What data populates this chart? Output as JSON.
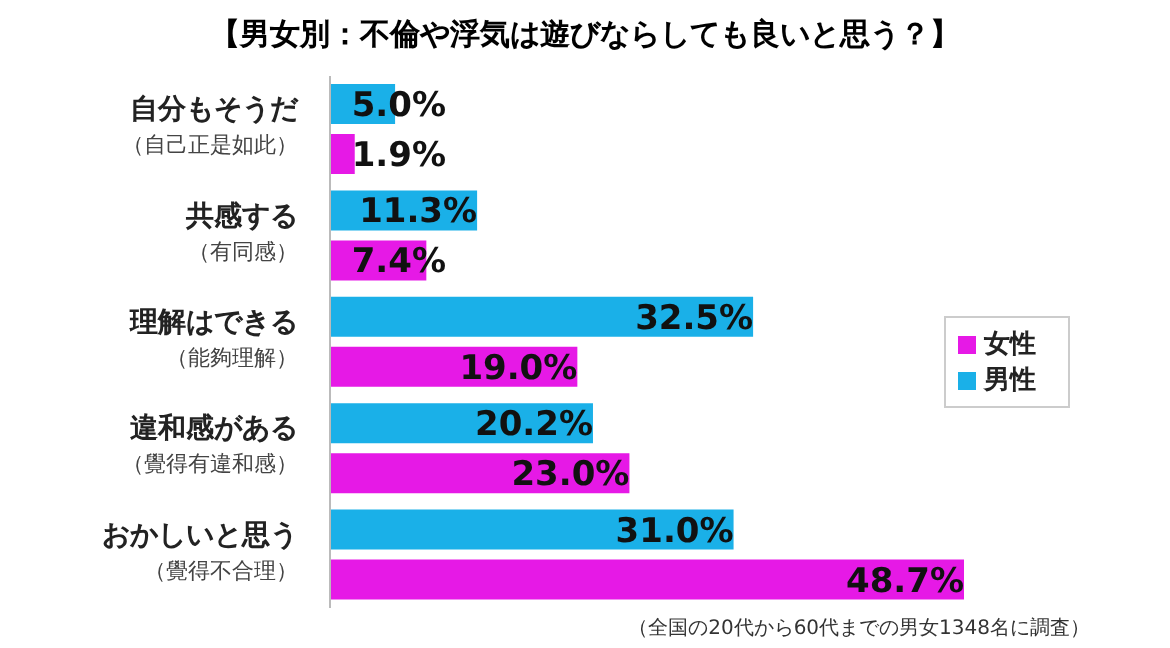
{
  "chart_data": {
    "type": "bar",
    "orientation": "horizontal",
    "title": "【男女別：不倫や浮気は遊びならしても良いと思う？】",
    "categories": [
      "自分もそうだ（自己正是如此）",
      "共感する（有同感）",
      "理解はできる（能夠理解）",
      "違和感がある（覺得有違和感）",
      "おかしいと思う（覺得不合理）"
    ],
    "series": [
      {
        "name": "男性",
        "color": "#1ab0e8",
        "values": [
          5.0,
          11.3,
          32.5,
          20.2,
          31.0
        ],
        "value_labels": [
          "5.0%",
          "11.3%",
          "32.5%",
          "20.2%",
          "31.0%"
        ]
      },
      {
        "name": "女性",
        "color": "#e619e6",
        "values": [
          1.9,
          7.4,
          19.0,
          23.0,
          48.7
        ],
        "value_labels": [
          "1.9%",
          "7.4%",
          "19.0%",
          "23.0%",
          "48.7%"
        ]
      }
    ],
    "legend": "right",
    "annotations": [
      "（全国の20代から60代までの男女1348名に調査）"
    ]
  }
}
